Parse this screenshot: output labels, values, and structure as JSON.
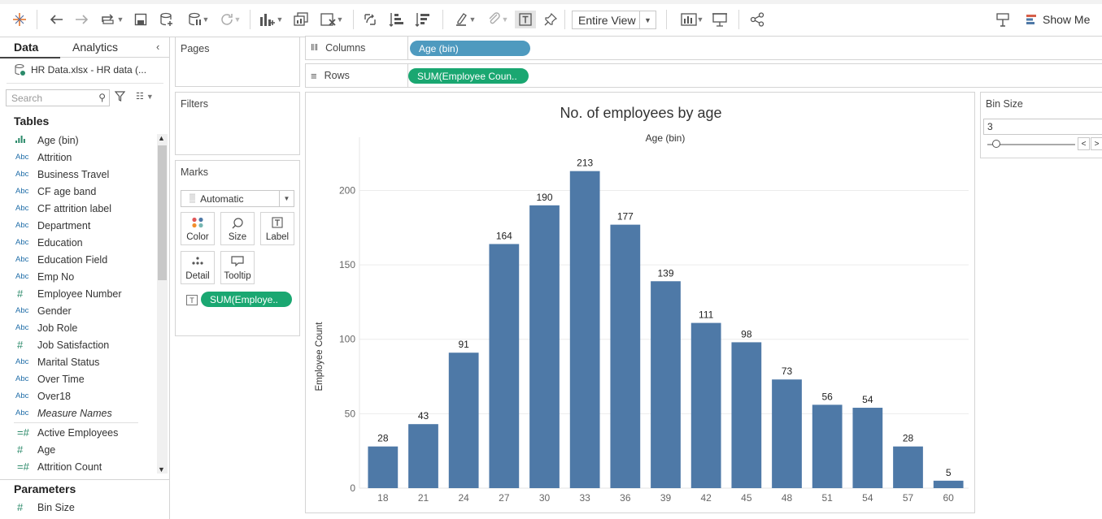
{
  "toolbar": {
    "view_mode": "Entire View",
    "show_me_label": "Show Me"
  },
  "datapane": {
    "tab_data": "Data",
    "tab_analytics": "Analytics",
    "datasource": "HR Data.xlsx - HR data (...",
    "search_placeholder": "Search",
    "tables_title": "Tables",
    "fields": [
      {
        "type": "bin",
        "label": "Age (bin)"
      },
      {
        "type": "Abc",
        "label": "Attrition"
      },
      {
        "type": "Abc",
        "label": "Business Travel"
      },
      {
        "type": "Abc",
        "label": "CF age band"
      },
      {
        "type": "Abc",
        "label": "CF attrition label"
      },
      {
        "type": "Abc",
        "label": "Department"
      },
      {
        "type": "Abc",
        "label": "Education"
      },
      {
        "type": "Abc",
        "label": "Education Field"
      },
      {
        "type": "Abc",
        "label": "Emp No"
      },
      {
        "type": "#",
        "label": "Employee Number"
      },
      {
        "type": "Abc",
        "label": "Gender"
      },
      {
        "type": "Abc",
        "label": "Job Role"
      },
      {
        "type": "#",
        "label": "Job Satisfaction"
      },
      {
        "type": "Abc",
        "label": "Marital Status"
      },
      {
        "type": "Abc",
        "label": "Over Time"
      },
      {
        "type": "Abc",
        "label": "Over18"
      },
      {
        "type": "Abc",
        "label": "Measure Names",
        "italic": true
      },
      {
        "type": "=#",
        "label": "Active Employees"
      },
      {
        "type": "#",
        "label": "Age"
      },
      {
        "type": "=#",
        "label": "Attrition Count"
      }
    ],
    "parameters_title": "Parameters",
    "parameter": {
      "type": "#",
      "label": "Bin Size"
    }
  },
  "cards": {
    "pages": "Pages",
    "filters": "Filters",
    "marks": "Marks",
    "mark_type": "Automatic",
    "buttons": [
      "Color",
      "Size",
      "Label",
      "Detail",
      "Tooltip"
    ],
    "marks_pill": "SUM(Employe..",
    "marks_pill_type_glyph": "T"
  },
  "shelves": {
    "columns_label": "Columns",
    "columns_pill": "Age (bin)",
    "rows_label": "Rows",
    "rows_pill": "SUM(Employee Coun.."
  },
  "viz": {
    "title": "No. of employees by age",
    "subtitle": "Age (bin)",
    "bar_color": "#4e79a7"
  },
  "chart_data": {
    "type": "bar",
    "title": "No. of employees by age",
    "xlabel": "Age (bin)",
    "ylabel": "Employee Count",
    "categories": [
      "18",
      "21",
      "24",
      "27",
      "30",
      "33",
      "36",
      "39",
      "42",
      "45",
      "48",
      "51",
      "54",
      "57",
      "60"
    ],
    "values": [
      28,
      43,
      91,
      164,
      190,
      213,
      177,
      139,
      111,
      98,
      73,
      56,
      54,
      28,
      5
    ],
    "yticks": [
      0,
      50,
      100,
      150,
      200
    ],
    "ylim": [
      0,
      233
    ],
    "grid": true,
    "data_labels": true
  },
  "bin_param": {
    "title": "Bin Size",
    "value": "3",
    "prev": "<",
    "next": ">"
  }
}
